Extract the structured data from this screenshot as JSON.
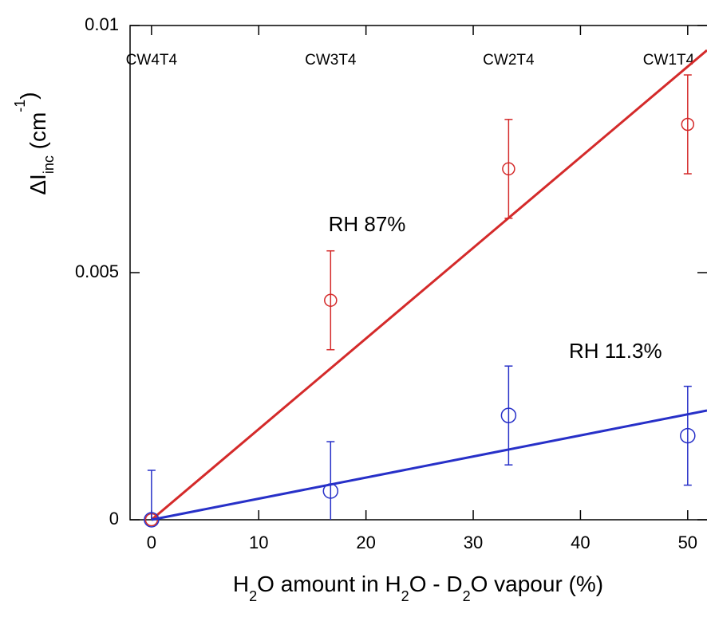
{
  "chart_data": {
    "type": "scatter",
    "x": [
      0,
      16.7,
      33.3,
      50
    ],
    "top_categories": [
      "CW4T4",
      "CW3T4",
      "CW2T4",
      "CW1T4"
    ],
    "series": [
      {
        "name": "RH 87%",
        "color": "#d42a2a",
        "values": [
          0,
          0.00444,
          0.0071,
          0.008
        ],
        "errors": [
          0,
          0.001,
          0.001,
          0.001
        ],
        "fit": [
          0,
          0.0095
        ]
      },
      {
        "name": "RH 11.3%",
        "color": "#2730c8",
        "values": [
          0,
          0.00058,
          0.00211,
          0.0017
        ],
        "errors": [
          0.001,
          0.001,
          0.001,
          0.001
        ],
        "fit": [
          0,
          0.00221
        ]
      }
    ],
    "fit_x": [
      0,
      51.8
    ],
    "xlim": [
      -2,
      51.8
    ],
    "ylim": [
      0,
      0.01
    ],
    "xticks": [
      0,
      10,
      20,
      30,
      40,
      50
    ],
    "yticks": [
      0,
      0.005,
      0.01
    ],
    "xlabel": [
      "H",
      "2",
      "O amount in H",
      "2",
      "O - D",
      "2",
      "O vapour (%)"
    ],
    "ylabel": [
      "ΔI",
      "inc",
      " (cm",
      "-1",
      ")"
    ]
  }
}
